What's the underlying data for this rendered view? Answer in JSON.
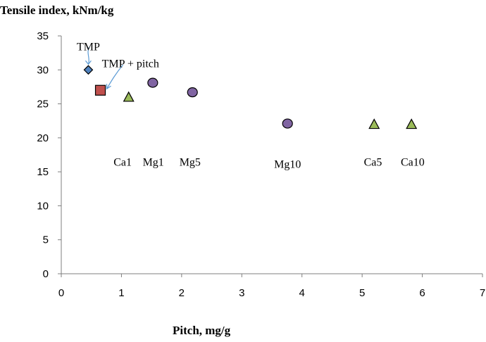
{
  "chart_data": {
    "type": "scatter",
    "title": "",
    "ylabel": "Tensile index, kNm/kg",
    "xlabel": "Pitch, mg/g",
    "xlim": [
      0,
      7
    ],
    "ylim": [
      0,
      35
    ],
    "xticks": [
      "0",
      "1",
      "2",
      "3",
      "4",
      "5",
      "6",
      "7"
    ],
    "yticks": [
      "0",
      "5",
      "10",
      "15",
      "20",
      "25",
      "30",
      "35"
    ],
    "grid": false,
    "series": [
      {
        "name": "TMP",
        "marker": "diamond",
        "color": "#4f81bd",
        "points": [
          {
            "x": 0.45,
            "y": 30
          }
        ]
      },
      {
        "name": "TMP + pitch",
        "marker": "square",
        "color": "#c0504d",
        "points": [
          {
            "x": 0.65,
            "y": 27
          }
        ]
      },
      {
        "name": "Mg",
        "marker": "circle",
        "color": "#8064a2",
        "points": [
          {
            "x": 1.52,
            "y": 28.1
          },
          {
            "x": 2.18,
            "y": 26.7
          },
          {
            "x": 3.76,
            "y": 22.1
          }
        ]
      },
      {
        "name": "Ca",
        "marker": "triangle",
        "color": "#9bbb59",
        "points": [
          {
            "x": 1.12,
            "y": 26
          },
          {
            "x": 5.2,
            "y": 22
          },
          {
            "x": 5.82,
            "y": 22
          }
        ]
      }
    ],
    "annotations": [
      {
        "text": "TMP",
        "x": 0.45,
        "y": 33.5
      },
      {
        "text": "TMP + pitch",
        "x": 1.15,
        "y": 31
      },
      {
        "text": "Ca1",
        "x": 1.02,
        "y": 16.5
      },
      {
        "text": "Mg1",
        "x": 1.53,
        "y": 16.5
      },
      {
        "text": "Mg5",
        "x": 2.14,
        "y": 16.5
      },
      {
        "text": "Mg10",
        "x": 3.76,
        "y": 16.2
      },
      {
        "text": "Ca5",
        "x": 5.18,
        "y": 16.5
      },
      {
        "text": "Ca10",
        "x": 5.84,
        "y": 16.5
      }
    ]
  }
}
